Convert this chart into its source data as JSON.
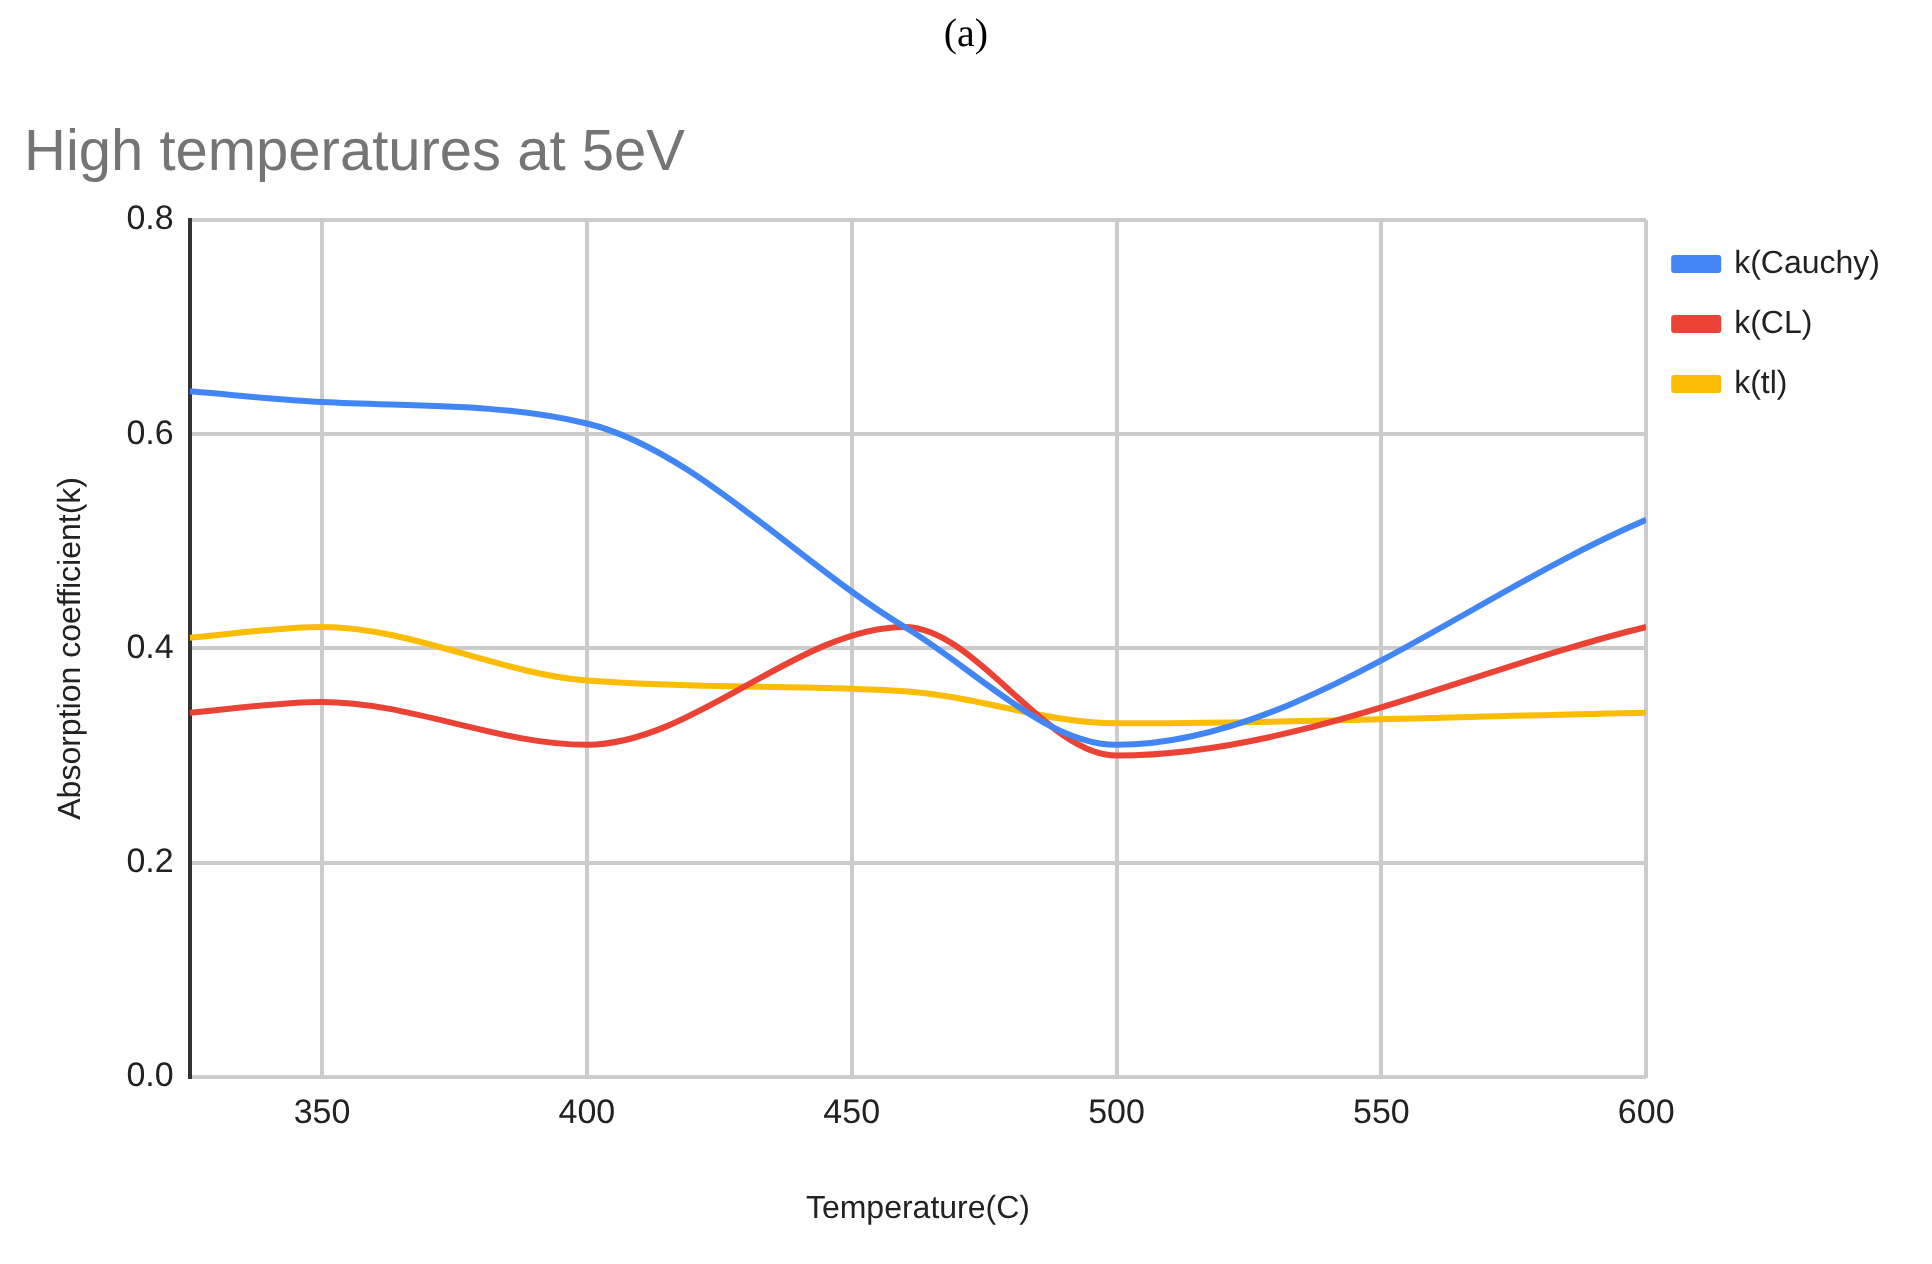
{
  "chart_data": {
    "type": "line",
    "title": "High temperatures at 5eV",
    "subtitle": "(a)",
    "xlabel": "Temperature(C)",
    "ylabel": "Absorption coefficient(k)",
    "x": [
      325,
      350,
      400,
      460,
      500,
      600
    ],
    "series": [
      {
        "name": "k(Cauchy)",
        "color": "#4285f4",
        "values": [
          0.64,
          0.63,
          0.61,
          0.42,
          0.31,
          0.52
        ]
      },
      {
        "name": "k(CL)",
        "color": "#ea4335",
        "values": [
          0.34,
          0.35,
          0.31,
          0.42,
          0.3,
          0.42
        ]
      },
      {
        "name": "k(tl)",
        "color": "#fbbc04",
        "values": [
          0.41,
          0.42,
          0.37,
          0.36,
          0.33,
          0.34
        ]
      }
    ],
    "xlim": [
      325,
      600
    ],
    "xticks": [
      350,
      400,
      450,
      500,
      550,
      600
    ],
    "ylim": [
      0,
      0.8
    ],
    "yticks": [
      {
        "value": 0,
        "label": "0.0"
      },
      {
        "value": 0.2,
        "label": "0.2"
      },
      {
        "value": 0.4,
        "label": "0.4"
      },
      {
        "value": 0.6,
        "label": "0.6"
      },
      {
        "value": 0.8,
        "label": "0.8"
      }
    ],
    "grid": true,
    "legend": "right",
    "marker": "none",
    "line_style": "solid"
  }
}
